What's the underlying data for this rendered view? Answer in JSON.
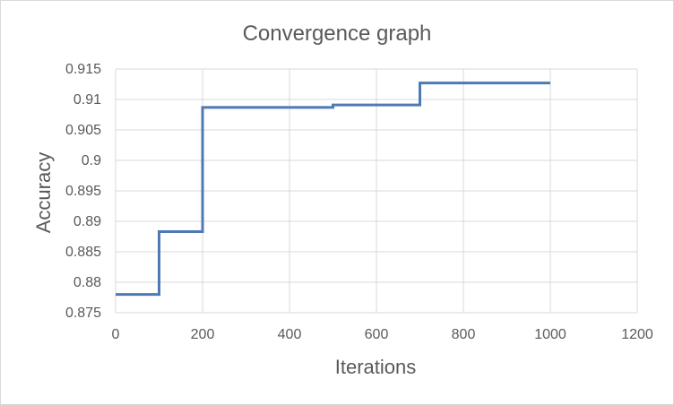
{
  "chart_data": {
    "type": "line",
    "title": "Convergence graph",
    "xlabel": "Iterations",
    "ylabel": "Accuracy",
    "xlim": [
      0,
      1200
    ],
    "ylim": [
      0.875,
      0.915
    ],
    "x_ticks": [
      "0",
      "200",
      "400",
      "600",
      "800",
      "1000",
      "1200"
    ],
    "y_ticks": [
      "0.875",
      "0.88",
      "0.885",
      "0.89",
      "0.895",
      "0.9",
      "0.905",
      "0.91",
      "0.915"
    ],
    "grid": true,
    "legend": "none",
    "line_color": "#4e79b5",
    "series": [
      {
        "x": [
          0,
          100,
          100,
          200,
          200,
          500,
          500,
          700,
          700,
          1000
        ],
        "y": [
          0.878,
          0.878,
          0.8883,
          0.8883,
          0.9087,
          0.9087,
          0.9091,
          0.9091,
          0.9127,
          0.9127
        ]
      }
    ]
  }
}
